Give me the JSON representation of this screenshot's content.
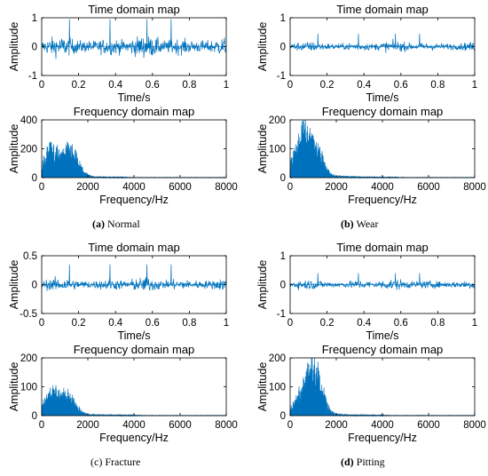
{
  "colors": {
    "signal": "#0072BD",
    "axis": "#000000"
  },
  "captions": [
    {
      "letter": "(a)",
      "text": " Normal"
    },
    {
      "letter": "(b)",
      "text": " Wear"
    },
    {
      "letter": "(c)",
      "text": " Fracture"
    },
    {
      "letter": "(d)",
      "text": " Pitting"
    }
  ],
  "chart_data": [
    {
      "panel": "a",
      "type": "line",
      "title": "Time domain map",
      "xlabel": "Time/s",
      "ylabel": "Amplitude",
      "xlim": [
        0,
        1
      ],
      "ylim": [
        -1,
        1
      ],
      "xticks": [
        "0",
        "0.2",
        "0.4",
        "0.6",
        "0.8",
        "1"
      ],
      "yticks": [
        "1",
        "0",
        "-1"
      ],
      "signal": {
        "kind": "noise",
        "amplitude": 0.3,
        "peak": 0.95,
        "description": "vibration waveform"
      }
    },
    {
      "panel": "a",
      "type": "line",
      "title": "Frequency domain map",
      "xlabel": "Frequency/Hz",
      "ylabel": "Amplitude",
      "xlim": [
        0,
        8000
      ],
      "ylim": [
        0,
        400
      ],
      "xticks": [
        "0",
        "2000",
        "4000",
        "6000",
        "8000"
      ],
      "yticks": [
        "400",
        "200",
        "0"
      ],
      "signal": {
        "kind": "spectrum",
        "peaks": [
          [
            400,
            240
          ],
          [
            1100,
            165
          ],
          [
            1400,
            120
          ]
        ],
        "tail_to": 4000
      }
    },
    {
      "panel": "b",
      "type": "line",
      "title": "Time domain map",
      "xlabel": "Time/s",
      "ylabel": "Amplitude",
      "xlim": [
        0,
        1
      ],
      "ylim": [
        -1,
        1
      ],
      "xticks": [
        "0",
        "0.2",
        "0.4",
        "0.6",
        "0.8",
        "1"
      ],
      "yticks": [
        "1",
        "0",
        "-1"
      ],
      "signal": {
        "kind": "noise",
        "amplitude": 0.15,
        "peak": 0.45
      }
    },
    {
      "panel": "b",
      "type": "line",
      "title": "Frequency domain map",
      "xlabel": "Frequency/Hz",
      "ylabel": "Amplitude",
      "xlim": [
        0,
        8000
      ],
      "ylim": [
        0,
        200
      ],
      "xticks": [
        "0",
        "2000",
        "4000",
        "6000",
        "8000"
      ],
      "yticks": [
        "200",
        "100",
        "0"
      ],
      "signal": {
        "kind": "spectrum",
        "peaks": [
          [
            450,
            135
          ],
          [
            1150,
            110
          ],
          [
            700,
            90
          ]
        ],
        "tail_to": 5000
      }
    },
    {
      "panel": "c",
      "type": "line",
      "title": "Time domain map",
      "xlabel": "Time/s",
      "ylabel": "Amplitude",
      "xlim": [
        0,
        1
      ],
      "ylim": [
        -0.5,
        0.5
      ],
      "xticks": [
        "0",
        "0.2",
        "0.4",
        "0.6",
        "0.8",
        "1"
      ],
      "yticks": [
        "0.5",
        "0",
        "-0.5"
      ],
      "signal": {
        "kind": "noise",
        "amplitude": 0.1,
        "peak": 0.35
      }
    },
    {
      "panel": "c",
      "type": "line",
      "title": "Frequency domain map",
      "xlabel": "Frequency/Hz",
      "ylabel": "Amplitude",
      "xlim": [
        0,
        8000
      ],
      "ylim": [
        0,
        200
      ],
      "xticks": [
        "0",
        "2000",
        "4000",
        "6000",
        "8000"
      ],
      "yticks": [
        "200",
        "100",
        "0"
      ],
      "signal": {
        "kind": "spectrum",
        "peaks": [
          [
            600,
            70
          ],
          [
            1200,
            75
          ],
          [
            300,
            50
          ]
        ],
        "tail_to": 4500
      }
    },
    {
      "panel": "d",
      "type": "line",
      "title": "Time domain map",
      "xlabel": "Time/s",
      "ylabel": "Amplitude",
      "xlim": [
        0,
        1
      ],
      "ylim": [
        -1,
        1
      ],
      "xticks": [
        "0",
        "0.2",
        "0.4",
        "0.6",
        "0.8",
        "1"
      ],
      "yticks": [
        "1",
        "0",
        "-1"
      ],
      "signal": {
        "kind": "noise",
        "amplitude": 0.15,
        "peak": 0.4
      }
    },
    {
      "panel": "d",
      "type": "line",
      "title": "Frequency domain map",
      "xlabel": "Frequency/Hz",
      "ylabel": "Amplitude",
      "xlim": [
        0,
        8000
      ],
      "ylim": [
        0,
        200
      ],
      "xticks": [
        "0",
        "2000",
        "4000",
        "6000",
        "8000"
      ],
      "yticks": [
        "200",
        "100",
        "0"
      ],
      "signal": {
        "kind": "spectrum",
        "peaks": [
          [
            1150,
            135
          ],
          [
            900,
            100
          ],
          [
            500,
            85
          ]
        ],
        "tail_to": 4500
      }
    }
  ]
}
